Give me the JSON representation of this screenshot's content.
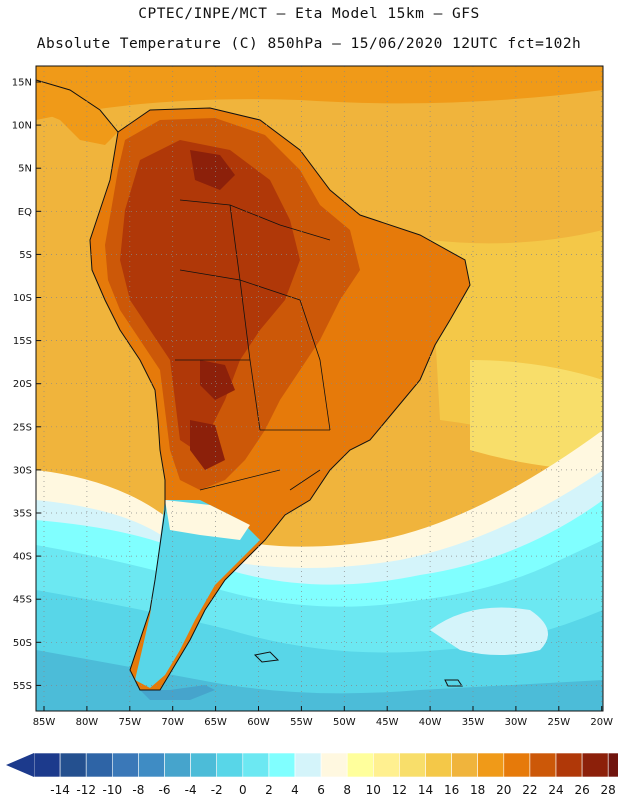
{
  "header": {
    "line1": "CPTEC/INPE/MCT –  Eta Model 15km – GFS",
    "line2": "Absolute Temperature (C) 850hPa – 15/06/2020 12UTC fct=102h"
  },
  "map": {
    "lat_labels": [
      "15N",
      "10N",
      "5N",
      "EQ",
      "5S",
      "10S",
      "15S",
      "20S",
      "25S",
      "30S",
      "35S",
      "40S",
      "45S",
      "50S",
      "55S"
    ],
    "lon_labels": [
      "85W",
      "80W",
      "75W",
      "70W",
      "65W",
      "60W",
      "55W",
      "50W",
      "45W",
      "40W",
      "35W",
      "30W",
      "25W",
      "20W"
    ],
    "ocean_color_warm": "#f0b43c",
    "land_color_hot": "#b84a10",
    "ocean_color_cold": "#5cd6ee"
  },
  "colorbar": {
    "ticks": [
      "-14",
      "-12",
      "-10",
      "-8",
      "-6",
      "-4",
      "-2",
      "0",
      "2",
      "4",
      "6",
      "8",
      "10",
      "12",
      "14",
      "16",
      "18",
      "20",
      "22",
      "24",
      "26",
      "28"
    ],
    "colors": [
      "#1c3a8c",
      "#24508f",
      "#2e64a6",
      "#3a78b8",
      "#3f8cc4",
      "#46a4cc",
      "#4cbcd8",
      "#58d6e8",
      "#6ce8f2",
      "#80ffff",
      "#d4f4fa",
      "#fff8e0",
      "#ffff9c",
      "#fff090",
      "#f8de6a",
      "#f4c848",
      "#f0b43c",
      "#f09a18",
      "#e67a0a",
      "#cc5808",
      "#b03808",
      "#8c200a",
      "#70140e"
    ],
    "low_color": "#1c3a8c",
    "high_color": "#8c0030"
  }
}
